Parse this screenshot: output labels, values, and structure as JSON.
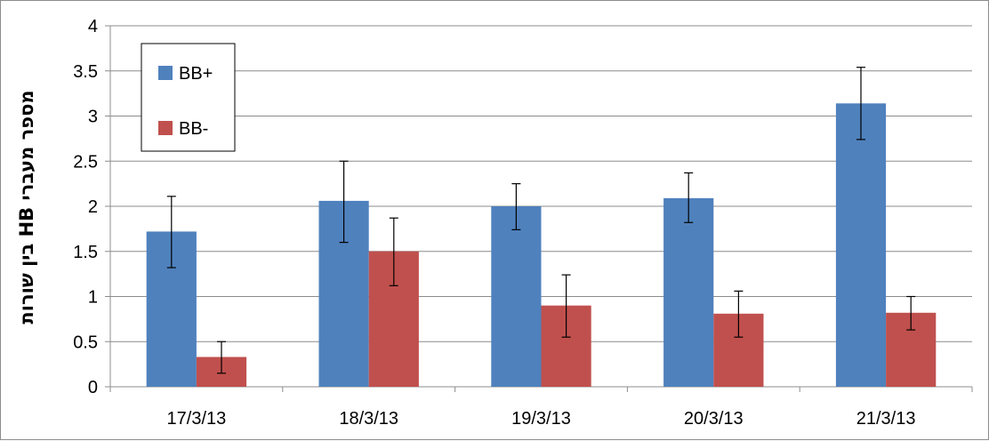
{
  "chart_data": {
    "type": "bar",
    "title": "",
    "xlabel": "",
    "ylabel": "מספר מעברי HB בין שורות",
    "ylim": [
      0,
      4
    ],
    "yticks": [
      "0",
      "0.5",
      "1",
      "1.5",
      "2",
      "2.5",
      "3",
      "3.5",
      "4"
    ],
    "grid": true,
    "legend_position": "top-left",
    "categories": [
      "17/3/13",
      "18/3/13",
      "19/3/13",
      "20/3/13",
      "21/3/13"
    ],
    "series": [
      {
        "name": "BB+",
        "color": "#4f81bd",
        "values": [
          1.72,
          2.06,
          2.0,
          2.09,
          3.14
        ],
        "error_low": [
          1.32,
          1.6,
          1.74,
          1.82,
          2.74
        ],
        "error_high": [
          2.11,
          2.5,
          2.25,
          2.37,
          3.54
        ]
      },
      {
        "name": "BB-",
        "color": "#c0504d",
        "values": [
          0.33,
          1.5,
          0.9,
          0.81,
          0.82
        ],
        "error_low": [
          0.15,
          1.12,
          0.55,
          0.55,
          0.63
        ],
        "error_high": [
          0.5,
          1.87,
          1.24,
          1.06,
          1.0
        ]
      }
    ]
  }
}
